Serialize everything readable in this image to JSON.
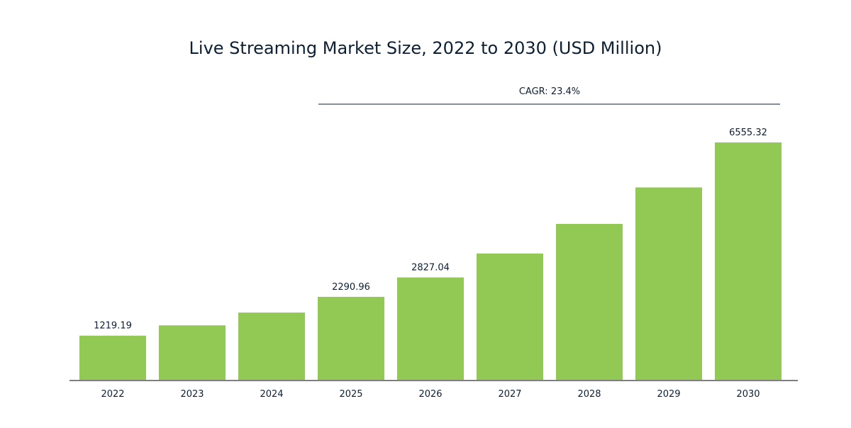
{
  "chart_data": {
    "type": "bar",
    "title": "Live Streaming Market Size, 2022 to 2030 (USD Million)",
    "xlabel": "",
    "ylabel": "",
    "categories": [
      "2022",
      "2023",
      "2024",
      "2025",
      "2026",
      "2027",
      "2028",
      "2029",
      "2030"
    ],
    "values": [
      1219.19,
      1504,
      1857,
      2290.96,
      2827.04,
      3489,
      4305,
      5313,
      6555.32
    ],
    "data_labels": [
      "1219.19",
      null,
      null,
      "2290.96",
      "2827.04",
      null,
      null,
      null,
      "6555.32"
    ],
    "ylim": [
      0,
      6555.32
    ],
    "grid": false,
    "annotation": {
      "text": "CAGR: 23.4%",
      "from": "2025",
      "to": "2030"
    },
    "bar_color": "#92c854",
    "text_color": "#0d1f33"
  }
}
